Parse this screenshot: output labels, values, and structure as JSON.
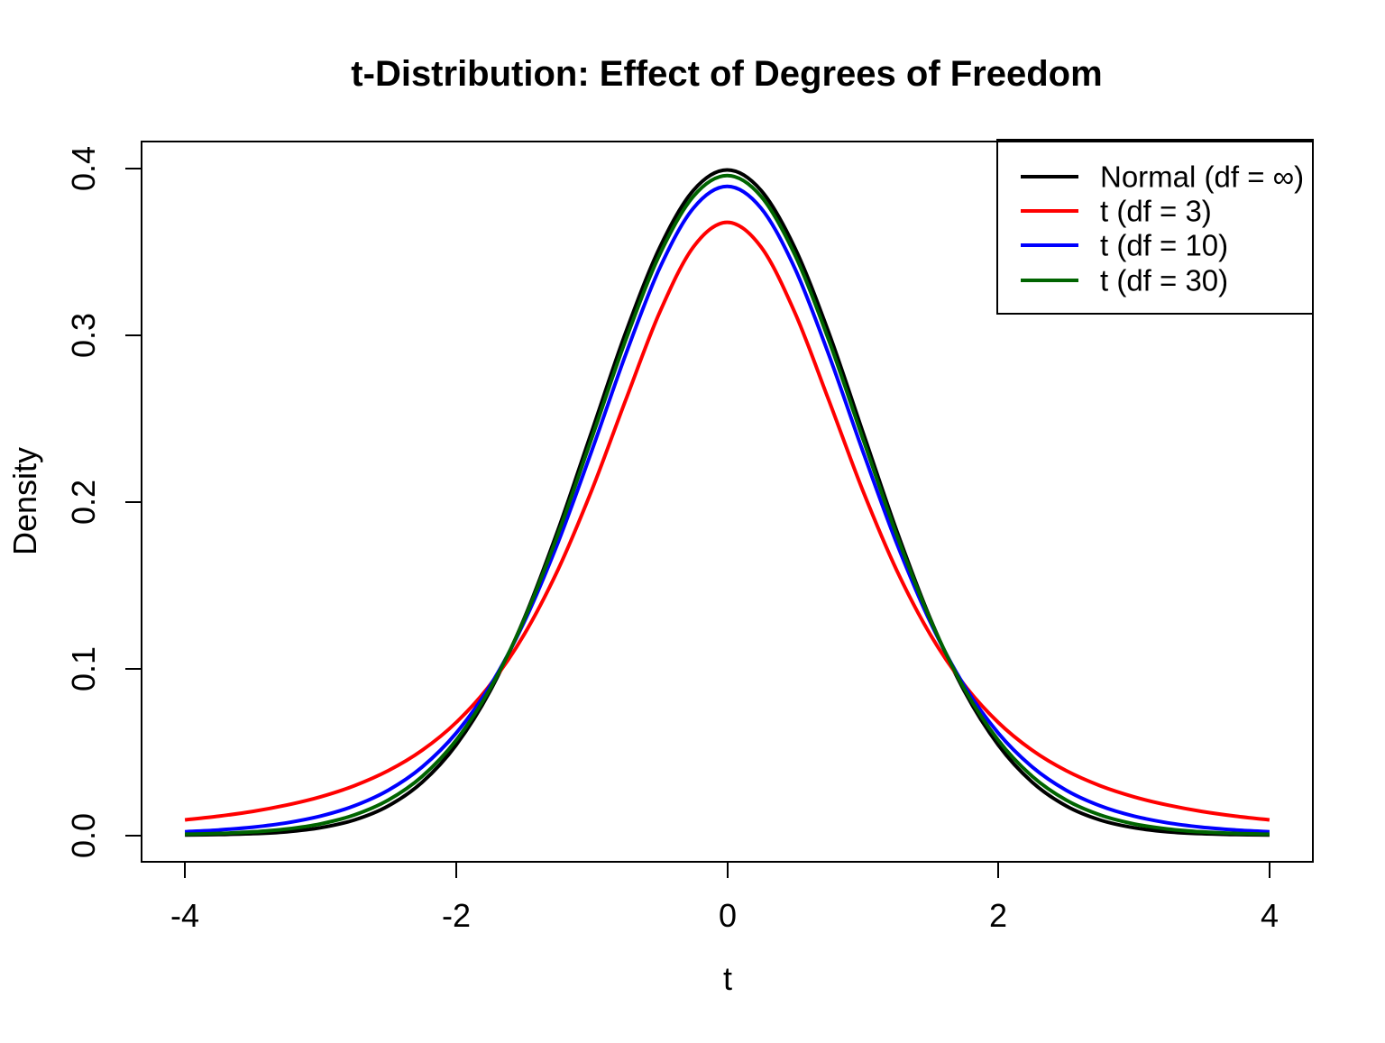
{
  "chart_data": {
    "type": "line",
    "title": "t-Distribution: Effect of Degrees of Freedom",
    "xlabel": "t",
    "ylabel": "Density",
    "xlim": [
      -4,
      4
    ],
    "ylim": [
      0,
      0.4
    ],
    "grid": false,
    "legend_position": "topright",
    "background": "#ffffff",
    "x_ticks": {
      "values": [
        -4,
        -2,
        0,
        2,
        4
      ],
      "labels": [
        "-4",
        "-2",
        "0",
        "2",
        "4"
      ]
    },
    "y_ticks": {
      "values": [
        0.0,
        0.1,
        0.2,
        0.3,
        0.4
      ],
      "labels": [
        "0.0",
        "0.1",
        "0.2",
        "0.3",
        "0.4"
      ]
    },
    "x": [
      -4,
      -3.75,
      -3.5,
      -3.25,
      -3,
      -2.75,
      -2.5,
      -2.25,
      -2,
      -1.75,
      -1.5,
      -1.25,
      -1,
      -0.75,
      -0.5,
      -0.25,
      0,
      0.25,
      0.5,
      0.75,
      1,
      1.25,
      1.5,
      1.75,
      2,
      2.25,
      2.5,
      2.75,
      3,
      3.25,
      3.5,
      3.75,
      4
    ],
    "series": [
      {
        "name": "Normal (df = ∞)",
        "color": "#000000",
        "values": [
          0.000134,
          0.000353,
          0.000873,
          0.002029,
          0.004432,
          0.009094,
          0.017528,
          0.03174,
          0.053991,
          0.086277,
          0.129518,
          0.182649,
          0.241971,
          0.301137,
          0.352065,
          0.386668,
          0.398942,
          0.386668,
          0.352065,
          0.301137,
          0.241971,
          0.182649,
          0.129518,
          0.086277,
          0.053991,
          0.03174,
          0.017528,
          0.009094,
          0.004432,
          0.002029,
          0.000873,
          0.000353,
          0.000134
        ]
      },
      {
        "name": "t (df = 3)",
        "color": "#ff0000",
        "values": [
          0.009164,
          0.011363,
          0.014224,
          0.017984,
          0.022972,
          0.02965,
          0.038662,
          0.05089,
          0.06751,
          0.090008,
          0.120019,
          0.158912,
          0.206748,
          0.260656,
          0.313183,
          0.352697,
          0.367553,
          0.352697,
          0.313183,
          0.260656,
          0.206748,
          0.158912,
          0.120019,
          0.090008,
          0.06751,
          0.05089,
          0.038662,
          0.02965,
          0.022972,
          0.017984,
          0.014224,
          0.011363,
          0.009164
        ]
      },
      {
        "name": "t (df = 10)",
        "color": "#0000ff",
        "values": [
          0.002031,
          0.003109,
          0.004785,
          0.007383,
          0.011416,
          0.017567,
          0.026924,
          0.0409,
          0.061151,
          0.08948,
          0.127445,
          0.175119,
          0.230362,
          0.287973,
          0.339694,
          0.376001,
          0.389108,
          0.376001,
          0.339694,
          0.287973,
          0.230362,
          0.175119,
          0.127445,
          0.08948,
          0.061151,
          0.0409,
          0.026924,
          0.017567,
          0.011416,
          0.007383,
          0.004785,
          0.003109,
          0.002031
        ]
      },
      {
        "name": "t (df = 30)",
        "color": "#006400",
        "values": [
          0.000525,
          0.001023,
          0.00196,
          0.003689,
          0.006778,
          0.012136,
          0.021061,
          0.035254,
          0.056865,
          0.087693,
          0.128963,
          0.180084,
          0.238002,
          0.29664,
          0.34787,
          0.383069,
          0.395625,
          0.383069,
          0.34787,
          0.29664,
          0.238002,
          0.180084,
          0.128963,
          0.087693,
          0.056865,
          0.035254,
          0.021061,
          0.012136,
          0.006778,
          0.003689,
          0.00196,
          0.001023,
          0.000525
        ]
      }
    ]
  }
}
